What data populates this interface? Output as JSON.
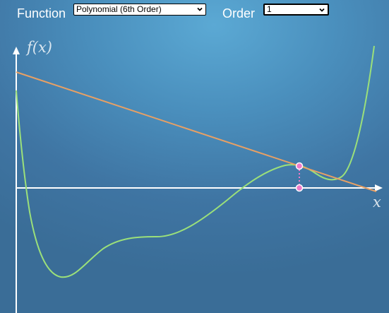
{
  "toolbar": {
    "function_label": "Function",
    "function_selected": "Polynomial (6th Order)",
    "order_label": "Order",
    "order_selected": "1"
  },
  "plot": {
    "y_axis_label": "f(x)",
    "x_axis_label": "x",
    "colors": {
      "curve": "#9be07a",
      "tangent": "#e8a064",
      "marker": "#f07ac8",
      "axes": "#ffffff"
    }
  }
}
